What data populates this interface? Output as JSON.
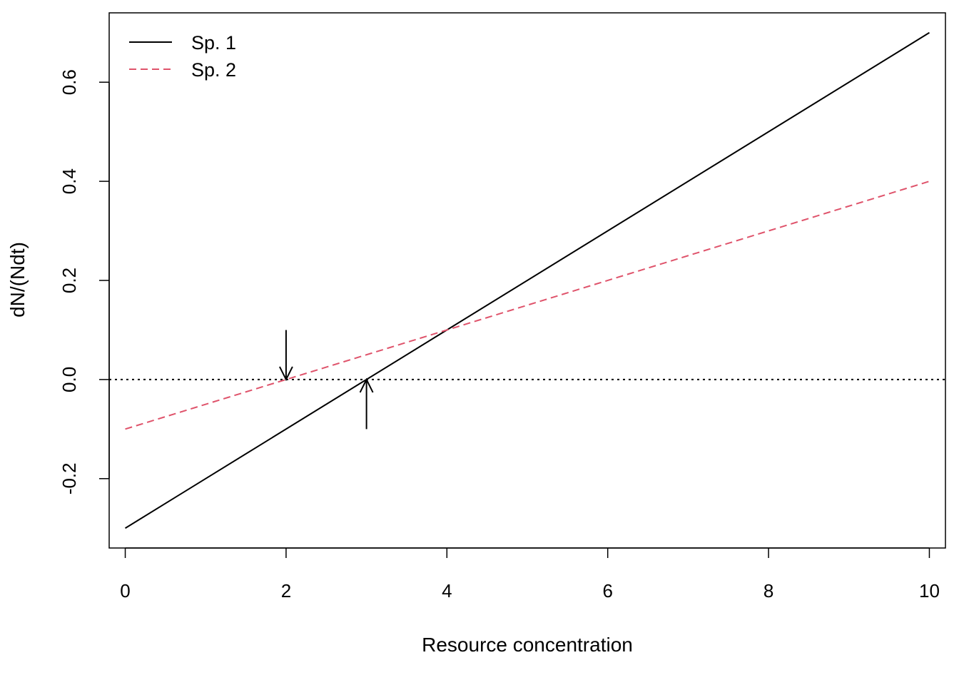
{
  "chart_data": {
    "type": "line",
    "title": "",
    "xlabel": "Resource concentration",
    "ylabel": "dN/(Ndt)",
    "xlim": [
      -0.2,
      10.2
    ],
    "ylim": [
      -0.34,
      0.74
    ],
    "x_ticks": [
      0,
      2,
      4,
      6,
      8,
      10
    ],
    "x_tick_labels": [
      "0",
      "2",
      "4",
      "6",
      "8",
      "10"
    ],
    "y_ticks": [
      -0.2,
      0.0,
      0.2,
      0.4,
      0.6
    ],
    "y_tick_labels": [
      "-0.2",
      "0.0",
      "0.2",
      "0.4",
      "0.6"
    ],
    "grid": false,
    "legend_position": "top-left",
    "series": [
      {
        "name": "Sp. 1",
        "style": "solid",
        "color": "#000000",
        "x": [
          0,
          10
        ],
        "y": [
          -0.3,
          0.7
        ]
      },
      {
        "name": "Sp. 2",
        "style": "dashed",
        "color": "#DF536B",
        "x": [
          0,
          10
        ],
        "y": [
          -0.1,
          0.4
        ]
      }
    ],
    "reference_line": {
      "y": 0.0,
      "style": "dotted",
      "color": "#000000"
    },
    "annotations": [
      {
        "type": "arrow",
        "direction": "down",
        "x": 2,
        "y_from": 0.1,
        "y_to": 0.0
      },
      {
        "type": "arrow",
        "direction": "up",
        "x": 3,
        "y_from": -0.1,
        "y_to": 0.0
      }
    ]
  }
}
